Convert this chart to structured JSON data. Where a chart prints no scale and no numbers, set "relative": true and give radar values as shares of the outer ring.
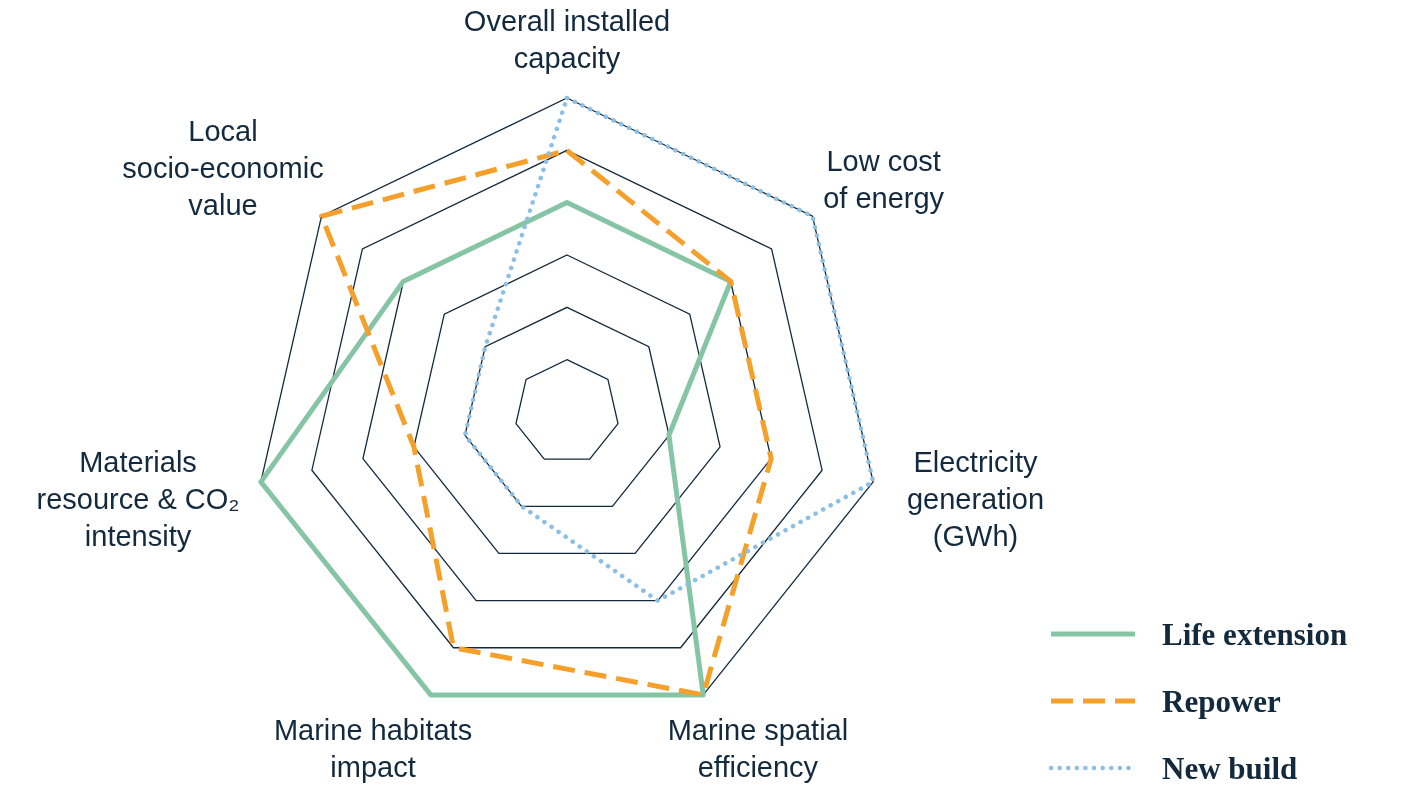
{
  "chart_data": {
    "type": "radar",
    "relative": true,
    "grid": true,
    "legend": "bottom right",
    "categories": [
      "Overall installed\ncapacity",
      "Low cost\nof energy",
      "Electricity\ngeneration\n(GWh)",
      "Marine spatial\nefficiency",
      "Marine habitats\nimpact",
      "Materials\nresource & CO₂\nintensity",
      "Local\nsocio-economic\nvalue"
    ],
    "series": [
      {
        "name": "Life extension",
        "color": "#85c5a5",
        "line_style": "solid",
        "values": [
          0.667,
          0.667,
          0.333,
          1,
          1,
          1,
          0.667
        ]
      },
      {
        "name": "Repower",
        "color": "#f5a02a",
        "line_style": "dashed",
        "values": [
          0.833,
          0.667,
          0.667,
          1,
          0.833,
          0.5,
          1
        ]
      },
      {
        "name": "New build",
        "color": "#8bbfe3",
        "line_style": "dotted",
        "values": [
          1,
          1,
          1,
          0.667,
          0.333,
          0.333,
          0.333
        ]
      }
    ]
  }
}
